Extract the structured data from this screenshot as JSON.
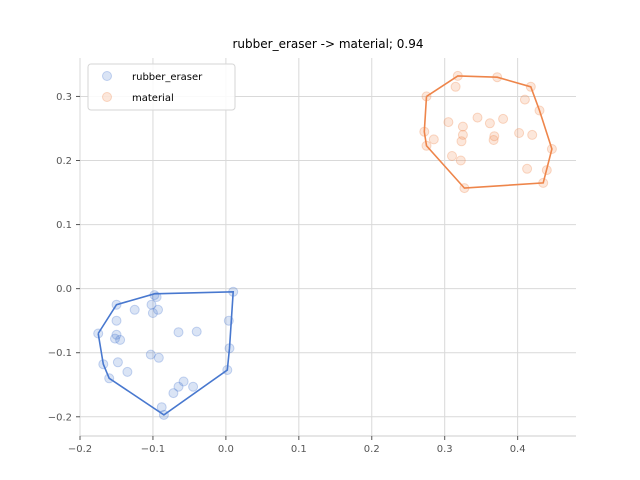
{
  "chart_data": {
    "type": "scatter",
    "title": "rubber_eraser -> material; 0.94",
    "xlabel": "",
    "ylabel": "",
    "xlim": [
      -0.2,
      0.48
    ],
    "ylim": [
      -0.23,
      0.36
    ],
    "xticks": [
      -0.2,
      -0.1,
      0.0,
      0.1,
      0.2,
      0.3,
      0.4
    ],
    "xtick_labels": [
      "−0.2",
      "−0.1",
      "0.0",
      "0.1",
      "0.2",
      "0.3",
      "0.4"
    ],
    "yticks": [
      -0.2,
      -0.1,
      0.0,
      0.1,
      0.2,
      0.3
    ],
    "ytick_labels": [
      "−0.2",
      "−0.1",
      "0.0",
      "0.1",
      "0.2",
      "0.3"
    ],
    "grid": true,
    "legend_position": "top-left",
    "series": [
      {
        "name": "rubber_eraser",
        "color": "#4878cf",
        "points": [
          [
            -0.175,
            -0.07
          ],
          [
            -0.168,
            -0.118
          ],
          [
            -0.16,
            -0.14
          ],
          [
            -0.15,
            -0.025
          ],
          [
            -0.15,
            -0.05
          ],
          [
            -0.15,
            -0.072
          ],
          [
            -0.152,
            -0.078
          ],
          [
            -0.145,
            -0.08
          ],
          [
            -0.148,
            -0.115
          ],
          [
            -0.135,
            -0.13
          ],
          [
            -0.125,
            -0.033
          ],
          [
            -0.103,
            -0.103
          ],
          [
            -0.102,
            -0.025
          ],
          [
            -0.1,
            -0.038
          ],
          [
            -0.098,
            -0.01
          ],
          [
            -0.095,
            -0.013
          ],
          [
            -0.093,
            -0.033
          ],
          [
            -0.092,
            -0.108
          ],
          [
            -0.088,
            -0.185
          ],
          [
            -0.085,
            -0.197
          ],
          [
            -0.072,
            -0.163
          ],
          [
            -0.065,
            -0.068
          ],
          [
            -0.065,
            -0.153
          ],
          [
            -0.058,
            -0.145
          ],
          [
            -0.045,
            -0.153
          ],
          [
            -0.04,
            -0.067
          ],
          [
            0.002,
            -0.127
          ],
          [
            0.004,
            -0.05
          ],
          [
            0.005,
            -0.093
          ],
          [
            0.01,
            -0.005
          ]
        ],
        "hull": [
          [
            -0.175,
            -0.07
          ],
          [
            -0.15,
            -0.025
          ],
          [
            -0.098,
            -0.008
          ],
          [
            0.01,
            -0.005
          ],
          [
            0.005,
            -0.093
          ],
          [
            0.002,
            -0.127
          ],
          [
            -0.085,
            -0.197
          ],
          [
            -0.16,
            -0.14
          ],
          [
            -0.168,
            -0.118
          ],
          [
            -0.175,
            -0.07
          ]
        ]
      },
      {
        "name": "material",
        "color": "#ee854a",
        "points": [
          [
            0.275,
            0.3
          ],
          [
            0.272,
            0.245
          ],
          [
            0.275,
            0.223
          ],
          [
            0.285,
            0.233
          ],
          [
            0.305,
            0.26
          ],
          [
            0.31,
            0.207
          ],
          [
            0.315,
            0.315
          ],
          [
            0.318,
            0.332
          ],
          [
            0.322,
            0.2
          ],
          [
            0.323,
            0.23
          ],
          [
            0.325,
            0.24
          ],
          [
            0.325,
            0.253
          ],
          [
            0.327,
            0.157
          ],
          [
            0.345,
            0.267
          ],
          [
            0.362,
            0.258
          ],
          [
            0.367,
            0.232
          ],
          [
            0.368,
            0.238
          ],
          [
            0.372,
            0.33
          ],
          [
            0.38,
            0.265
          ],
          [
            0.402,
            0.243
          ],
          [
            0.41,
            0.295
          ],
          [
            0.413,
            0.187
          ],
          [
            0.418,
            0.315
          ],
          [
            0.42,
            0.24
          ],
          [
            0.43,
            0.278
          ],
          [
            0.435,
            0.165
          ],
          [
            0.44,
            0.185
          ],
          [
            0.447,
            0.218
          ]
        ],
        "hull": [
          [
            0.275,
            0.3
          ],
          [
            0.318,
            0.332
          ],
          [
            0.372,
            0.33
          ],
          [
            0.418,
            0.315
          ],
          [
            0.43,
            0.278
          ],
          [
            0.447,
            0.218
          ],
          [
            0.435,
            0.165
          ],
          [
            0.327,
            0.157
          ],
          [
            0.275,
            0.223
          ],
          [
            0.272,
            0.245
          ],
          [
            0.275,
            0.3
          ]
        ]
      }
    ]
  }
}
